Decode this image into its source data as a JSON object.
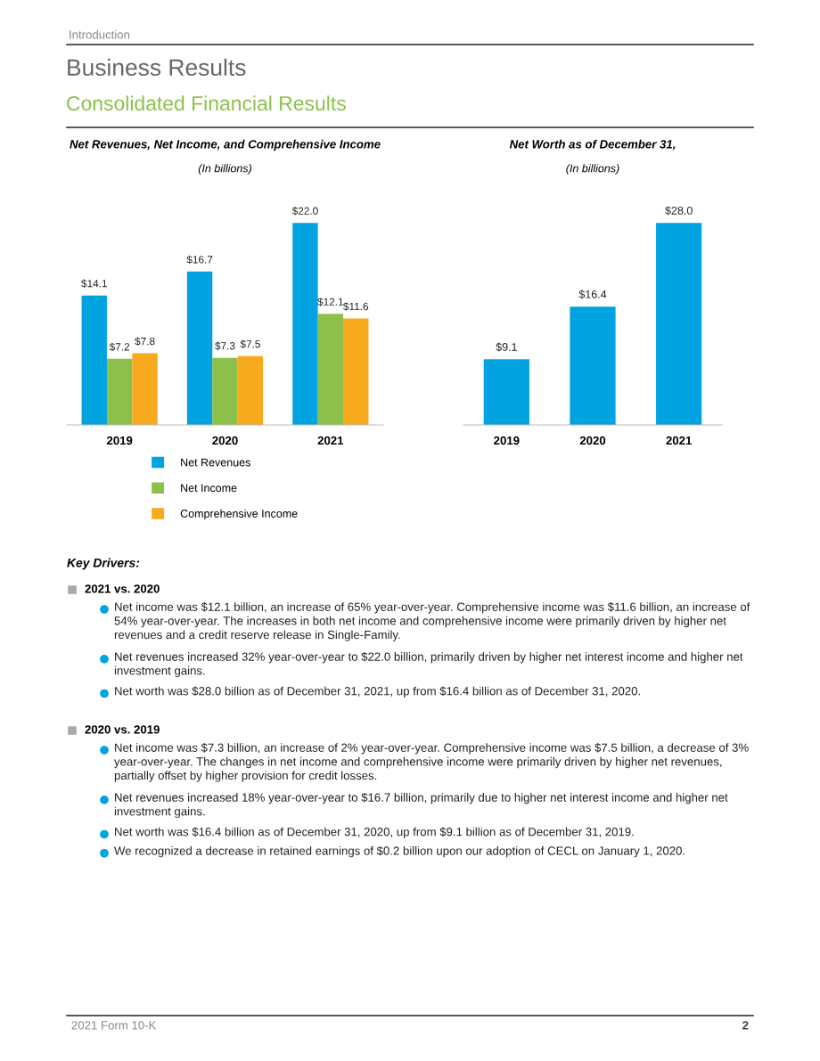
{
  "chart_data": [
    {
      "type": "other",
      "title": "Business Results",
      "subtitle": "Consolidated Financial Results",
      "annotations": [
        "Introduction"
      ]
    },
    {
      "type": "bar",
      "title": "Net Revenues, Net Income, and Comprehensive Income",
      "subtitle": "(In billions)",
      "categories": [
        "2019",
        "2020",
        "2021"
      ],
      "legend": "bottom",
      "series": [
        {
          "name": "Net Revenues",
          "color": "#00a3e0",
          "values": [
            14.1,
            16.7,
            22.0
          ],
          "value_labels": [
            "$14.1",
            "$16.7",
            "$22.0"
          ]
        },
        {
          "name": "Net Income",
          "color": "#8cc04b",
          "values": [
            7.2,
            7.3,
            12.1
          ],
          "value_labels": [
            "$7.2",
            "$7.3",
            "$12.1"
          ]
        },
        {
          "name": "Comprehensive Income",
          "color": "#f8aa1e",
          "values": [
            7.8,
            7.5,
            11.6
          ],
          "value_labels": [
            "$7.8",
            "$7.5",
            "$11.6"
          ]
        }
      ]
    },
    {
      "type": "bar",
      "title": "Net Worth as of December 31,",
      "subtitle": "(In billions)",
      "categories": [
        "2019",
        "2020",
        "2021"
      ],
      "color": "#00a3e0",
      "values": [
        9.1,
        16.4,
        28.0
      ],
      "value_labels": [
        "$9.1",
        "$16.4",
        "$28.0"
      ]
    },
    {
      "type": "other",
      "title": "Key Drivers:"
    },
    {
      "type": "other",
      "title": "2021 vs. 2020",
      "annotations": [
        "Net income was $12.1 billion, an increase of 65% year-over-year. Comprehensive income was $11.6 billion, an increase of 54% year-over-year. The increases in both net income and comprehensive income were primarily driven by higher net revenues and a credit reserve release in Single-Family.",
        "Net revenues increased 32% year-over-year to $22.0 billion, primarily driven by higher net interest income and higher net investment gains.",
        "Net worth was $28.0 billion as of December 31, 2021, up from $16.4 billion as of December 31, 2020."
      ]
    },
    {
      "type": "other",
      "title": "2020 vs. 2019",
      "annotations": [
        "Net income was $7.3 billion, an increase of 2% year-over-year. Comprehensive income was $7.5 billion, a decrease of 3% year-over-year. The changes in net income and comprehensive income were primarily driven by higher net revenues, partially offset by higher provision for credit losses.",
        "Net revenues increased 18% year-over-year to $16.7 billion, primarily due to higher net interest income and higher net investment gains.",
        "Net worth was $16.4 billion as of December 31, 2020, up from $9.1 billion as of December 31, 2019.",
        "We recognized a decrease in retained earnings of $0.2 billion upon our adoption of CECL on January 1, 2020."
      ]
    },
    {
      "type": "other",
      "annotations": [
        "2021 Form 10-K",
        "2"
      ]
    }
  ]
}
